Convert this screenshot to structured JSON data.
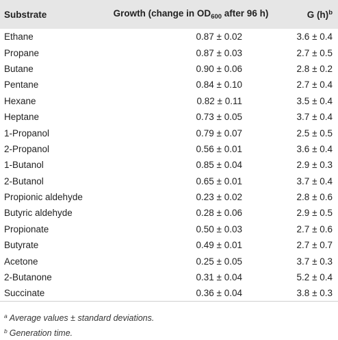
{
  "table": {
    "headers": {
      "substrate": "Substrate",
      "growth_main": "Growth (change in OD",
      "growth_sub": "600",
      "growth_tail": " after 96 h)",
      "g_main": "G (h)",
      "g_sup": "b"
    },
    "rows": [
      {
        "substrate": "Ethane",
        "growth": "0.87 ± 0.02",
        "g": "3.6 ± 0.4"
      },
      {
        "substrate": "Propane",
        "growth": "0.87 ± 0.03",
        "g": "2.7 ± 0.5"
      },
      {
        "substrate": "Butane",
        "growth": "0.90 ± 0.06",
        "g": "2.8 ± 0.2"
      },
      {
        "substrate": "Pentane",
        "growth": "0.84 ± 0.10",
        "g": "2.7 ± 0.4"
      },
      {
        "substrate": "Hexane",
        "growth": "0.82 ± 0.11",
        "g": "3.5 ± 0.4"
      },
      {
        "substrate": "Heptane",
        "growth": "0.73 ± 0.05",
        "g": "3.7 ± 0.4"
      },
      {
        "substrate": "1-Propanol",
        "growth": "0.79 ± 0.07",
        "g": "2.5 ± 0.5"
      },
      {
        "substrate": "2-Propanol",
        "growth": "0.56 ± 0.01",
        "g": "3.6 ± 0.4"
      },
      {
        "substrate": "1-Butanol",
        "growth": "0.85 ± 0.04",
        "g": "2.9 ± 0.3"
      },
      {
        "substrate": "2-Butanol",
        "growth": "0.65 ± 0.01",
        "g": "3.7 ± 0.4"
      },
      {
        "substrate": "Propionic aldehyde",
        "growth": "0.23 ± 0.02",
        "g": "2.8 ± 0.6"
      },
      {
        "substrate": "Butyric aldehyde",
        "growth": "0.28 ± 0.06",
        "g": "2.9 ± 0.5"
      },
      {
        "substrate": "Propionate",
        "growth": "0.50 ± 0.03",
        "g": "2.7 ± 0.6"
      },
      {
        "substrate": "Butyrate",
        "growth": "0.49 ± 0.01",
        "g": "2.7 ± 0.7"
      },
      {
        "substrate": "Acetone",
        "growth": "0.25 ± 0.05",
        "g": "3.7 ± 0.3"
      },
      {
        "substrate": "2-Butanone",
        "growth": "0.31 ± 0.04",
        "g": "5.2 ± 0.4"
      },
      {
        "substrate": "Succinate",
        "growth": "0.36 ± 0.04",
        "g": "3.8 ± 0.3"
      }
    ]
  },
  "footnotes": [
    {
      "mark": "a",
      "text": "Average values ± standard deviations."
    },
    {
      "mark": "b",
      "text": "Generation time."
    }
  ]
}
